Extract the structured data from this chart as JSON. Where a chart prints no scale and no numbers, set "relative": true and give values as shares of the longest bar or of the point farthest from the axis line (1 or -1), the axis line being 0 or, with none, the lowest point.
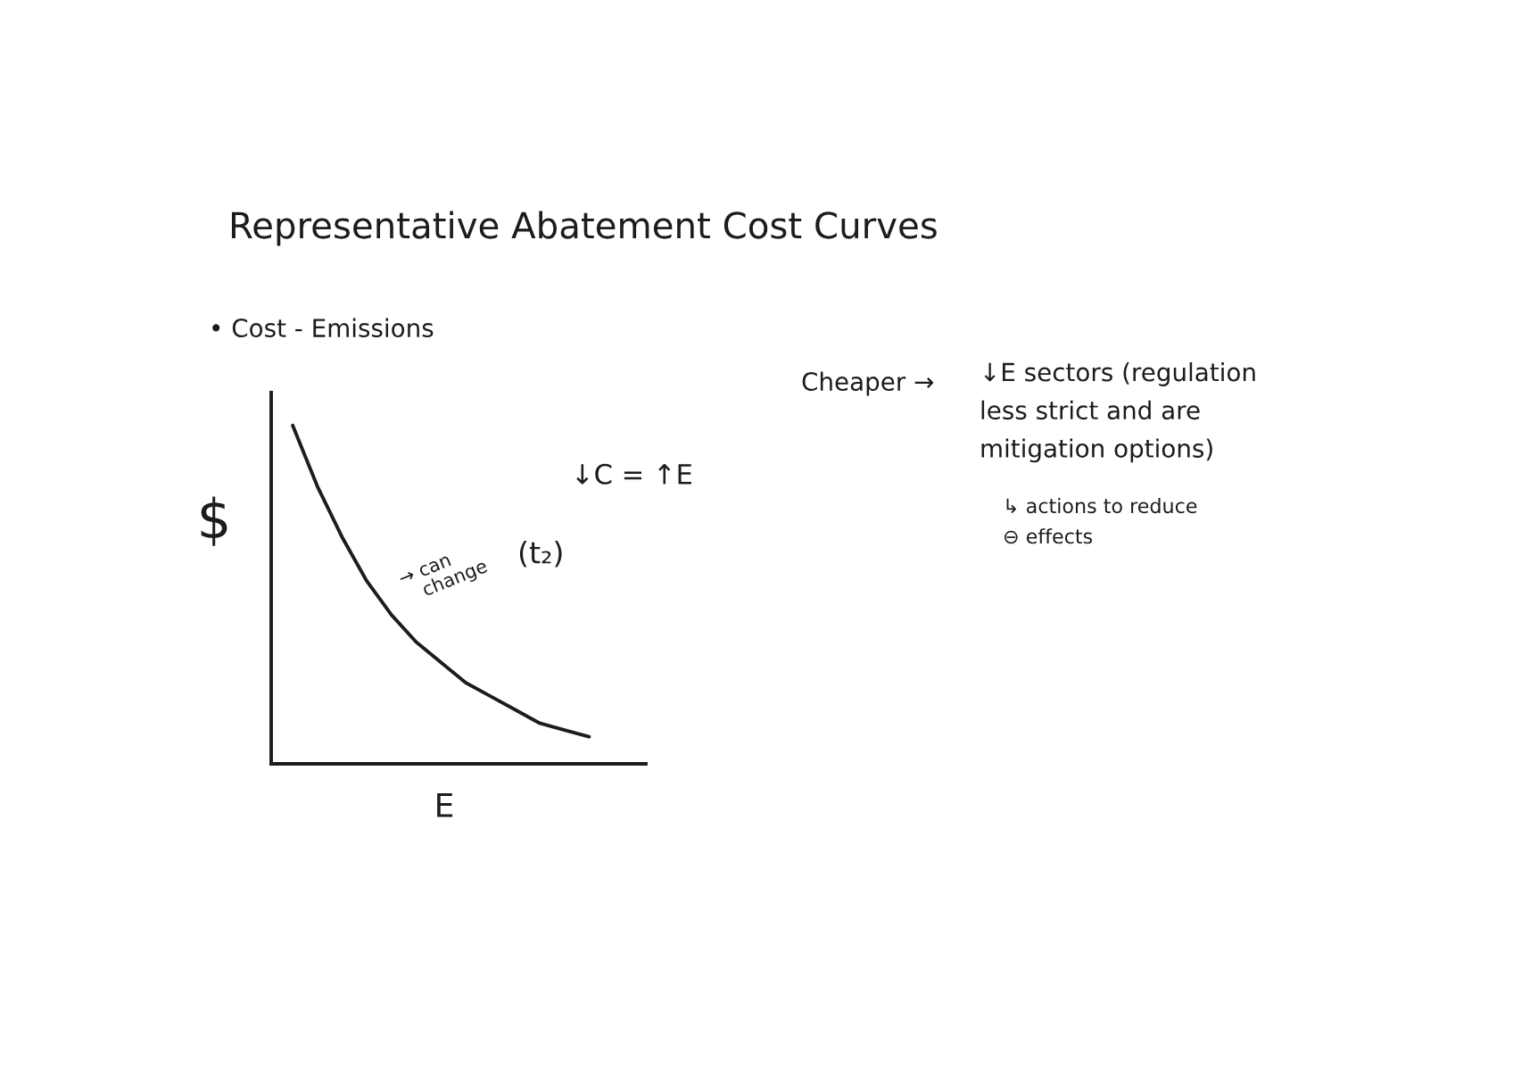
{
  "chart_data": {
    "type": "line",
    "title": "Representative Abatement Cost Curves",
    "subtitle": "• Cost - Emissions",
    "xlabel": "E",
    "ylabel": "$",
    "relative": true,
    "categories": [
      null,
      null,
      null,
      null,
      null,
      null,
      null,
      null,
      null,
      null,
      null,
      null,
      null
    ],
    "series": [
      {
        "color": "#1c1c1c",
        "values": [
          1,
          0.82,
          0.67,
          0.54,
          0.44,
          0.36,
          0.3,
          0.24,
          0.2,
          0.16,
          0.12,
          0.1,
          0.08
        ]
      }
    ],
    "annotations": [
      "↓C = ↑E",
      "→ can\n   change",
      "(t₂)",
      "Cheaper →",
      "↓E sectors (regulation\nless strict and are\nmitigation options)",
      "↳ actions to reduce\n⊖ effects"
    ]
  }
}
